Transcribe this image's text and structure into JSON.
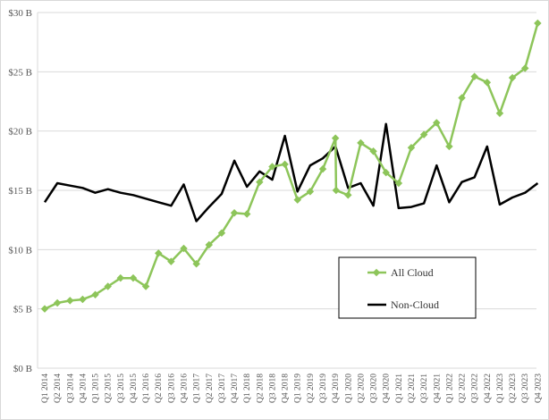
{
  "chart_data": {
    "type": "line",
    "title": "",
    "xlabel": "",
    "ylabel": "",
    "ylim": [
      0,
      30
    ],
    "y_ticks": [
      "$0 B",
      "$5 B",
      "$10 B",
      "$15 B",
      "$20 B",
      "$25 B",
      "$30 B"
    ],
    "y_tick_values": [
      0,
      5,
      10,
      15,
      20,
      25,
      30
    ],
    "grid": "horizontal",
    "legend_position": "lower-right",
    "categories": [
      "Q1 2014",
      "Q2 2014",
      "Q3 2014",
      "Q4 2014",
      "Q1 2015",
      "Q2 2015",
      "Q3 2015",
      "Q4 2015",
      "Q1 2016",
      "Q2 2016",
      "Q3 2016",
      "Q4 2016",
      "Q1 2017",
      "Q2 2017",
      "Q3 2017",
      "Q4 2017",
      "Q1 2018",
      "Q2 2018",
      "Q3 2018",
      "Q4 2018",
      "Q1 2019",
      "Q2 2019",
      "Q3 2019",
      "Q4 2019",
      "Q1 2020",
      "Q2 2020",
      "Q3 2020",
      "Q4 2020",
      "Q1 2021",
      "Q2 2021",
      "Q3 2021",
      "Q4 2021",
      "Q1 2022",
      "Q2 2022",
      "Q3 2022",
      "Q4 2022",
      "Q1 2023",
      "Q2 2023",
      "Q3 2023",
      "Q4 2023"
    ],
    "series": [
      {
        "name": "All Cloud",
        "color": "#8DC55A",
        "marker": "diamond",
        "values": [
          5.0,
          5.5,
          5.7,
          5.8,
          6.2,
          6.9,
          7.6,
          7.6,
          6.9,
          9.7,
          9.0,
          10.1,
          8.8,
          10.4,
          11.4,
          13.1,
          13.0,
          15.7,
          17.0,
          17.2,
          14.2,
          14.9,
          16.8,
          19.4,
          14.6,
          19.0,
          18.3,
          16.5,
          15.6,
          18.6,
          19.7,
          20.7,
          18.7,
          22.8,
          24.6,
          24.1,
          21.5,
          24.5,
          25.3,
          29.1
        ],
        "interleaved": {
          "after_index": 23,
          "value": 15.0
        }
      },
      {
        "name": "Non-Cloud",
        "color": "#000000",
        "marker": "none",
        "values": [
          14.0,
          15.6,
          15.4,
          15.2,
          14.8,
          15.1,
          14.8,
          14.6,
          14.3,
          14.0,
          13.7,
          15.5,
          12.4,
          13.6,
          14.7,
          17.5,
          15.3,
          16.6,
          15.9,
          19.6,
          14.9,
          17.1,
          17.7,
          18.7,
          15.2,
          15.6,
          13.7,
          20.6,
          13.5,
          13.6,
          13.9,
          17.1,
          14.0,
          15.7,
          16.1,
          18.7,
          13.8,
          14.4,
          14.8,
          15.6
        ]
      }
    ],
    "legend": [
      {
        "label": "All Cloud"
      },
      {
        "label": "Non-Cloud"
      }
    ]
  }
}
